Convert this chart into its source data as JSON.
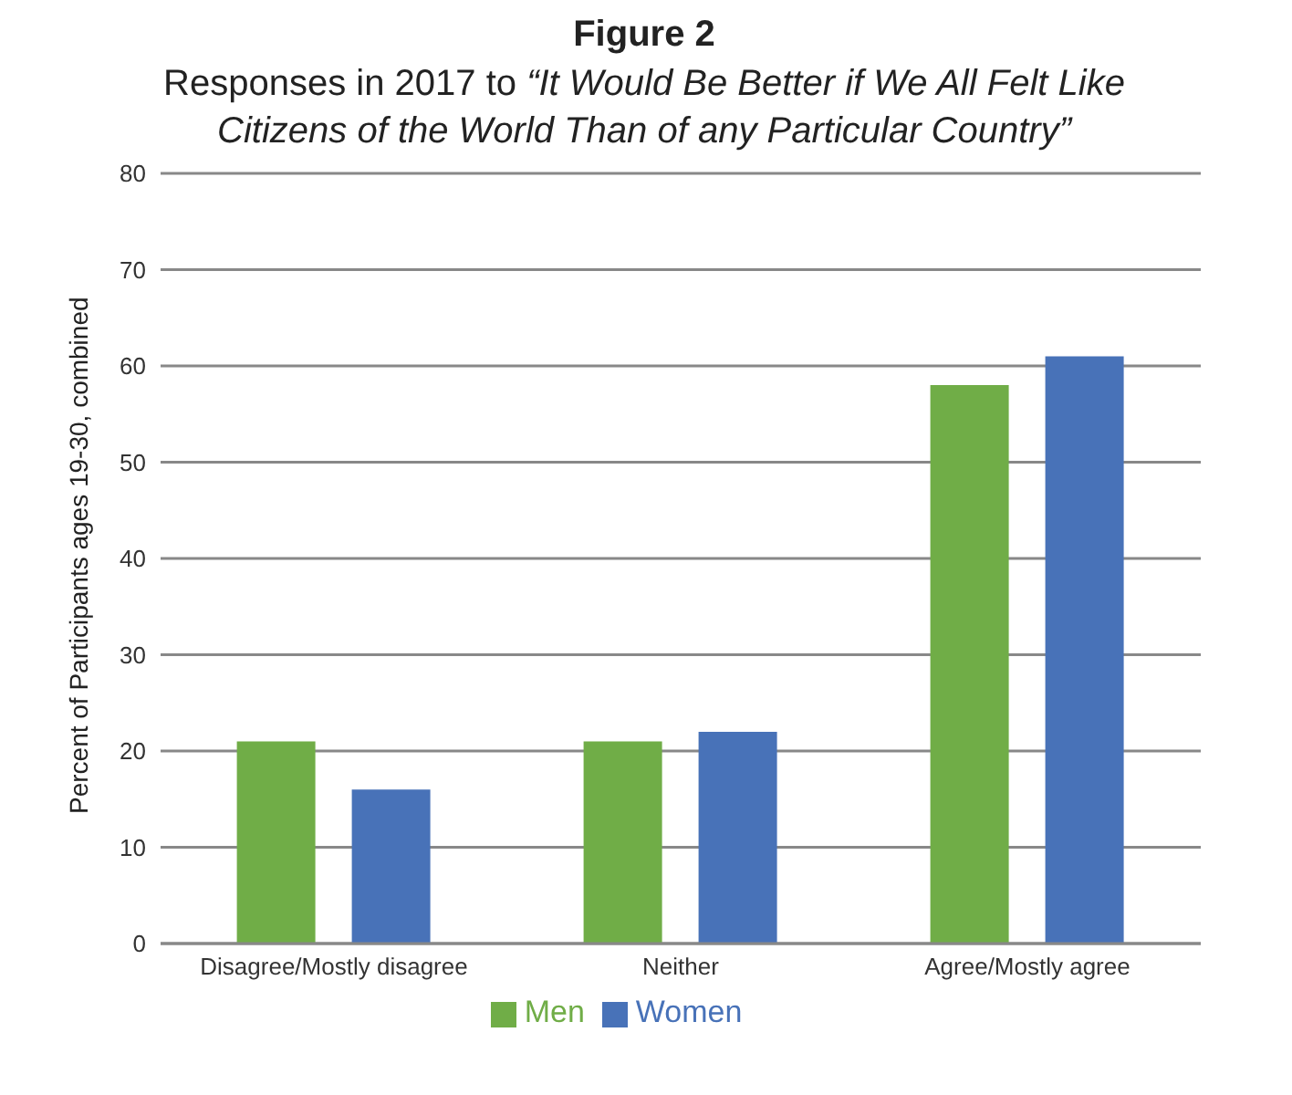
{
  "chart_data": {
    "type": "bar",
    "title": "Figure 2",
    "subtitle": "Responses in 2017 to “It Would Be Better if We All Felt Like Citizens of the World Than of any Particular Country”",
    "ylabel": "Percent of Participants  ages 19-30, combined",
    "categories": [
      "Disagree/Mostly disagree",
      "Neither",
      "Agree/Mostly agree"
    ],
    "series": [
      {
        "name": "Men",
        "color": "#70ad47",
        "values": [
          21,
          21,
          58
        ]
      },
      {
        "name": "Women",
        "color": "#4872b8",
        "values": [
          16,
          22,
          61
        ]
      }
    ],
    "ylim": [
      0,
      80
    ],
    "yticks": [
      0,
      10,
      20,
      30,
      40,
      50,
      60,
      70,
      80
    ],
    "grid": "y",
    "legend": "bottom"
  }
}
